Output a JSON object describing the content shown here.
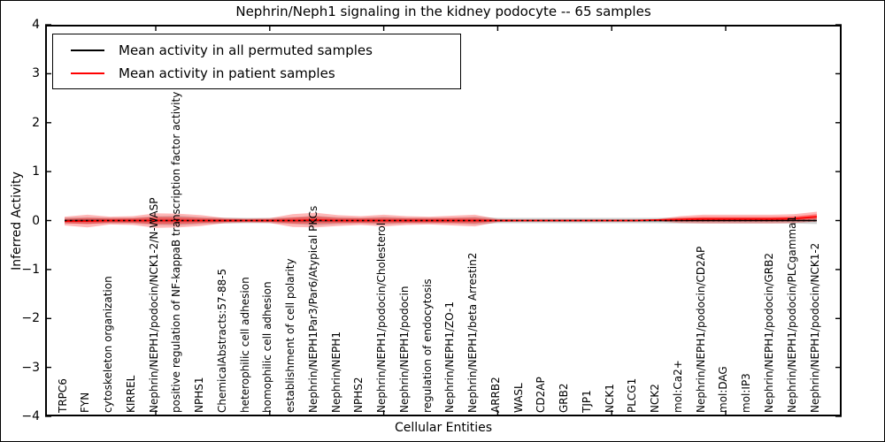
{
  "chart_data": {
    "type": "line",
    "title": "Nephrin/Neph1 signaling in the kidney podocyte -- 65 samples",
    "xlabel": "Cellular Entities",
    "ylabel": "Inferred Activity",
    "ylim": [
      -4,
      4
    ],
    "grid": false,
    "legend_position": "upper-left",
    "y_ticks": [
      4,
      3,
      2,
      1,
      0,
      -1,
      -2,
      -3,
      -4
    ],
    "y_tick_labels": [
      "4",
      "3",
      "2",
      "1",
      "0",
      "−1",
      "−2",
      "−3",
      "−4"
    ],
    "x_major_tick_indices": [
      4,
      9,
      14,
      19,
      24,
      29
    ],
    "categories": [
      "TRPC6",
      "FYN",
      "cytoskeleton organization",
      "KIRREL",
      "Nephrin/NEPH1/podocin/NCK1-2/N-WASP",
      "positive regulation of NF-kappaB transcription factor activity",
      "NPHS1",
      "ChemicalAbstracts:57-88-5",
      "heterophilic cell adhesion",
      "homophilic cell adhesion",
      "establishment of cell polarity",
      "Nephrin/NEPH1Par3/Par6/Atypical PKCs",
      "Nephrin/NEPH1",
      "NPHS2",
      "Nephrin/NEPH1/podocin/Cholesterol",
      "Nephrin/NEPH1/podocin",
      "regulation of endocytosis",
      "Nephrin/NEPH1/ZO-1",
      "Nephrin/NEPH1/beta Arrestin2",
      "ARRB2",
      "WASL",
      "CD2AP",
      "GRB2",
      "TJP1",
      "NCK1",
      "PLCG1",
      "NCK2",
      "mol:Ca2+",
      "Nephrin/NEPH1/podocin/CD2AP",
      "mol:DAG",
      "mol:IP3",
      "Nephrin/NEPH1/podocin/GRB2",
      "Nephrin/NEPH1/podocin/PLCgamma1",
      "Nephrin/NEPH1/podocin/NCK1-2"
    ],
    "series": [
      {
        "name": "Mean activity in all permuted samples",
        "color": "#000000",
        "values": [
          0,
          0,
          0,
          0,
          0,
          0,
          0,
          0,
          0,
          0,
          0,
          0,
          0,
          0,
          0,
          0,
          0,
          0,
          0,
          0,
          0,
          0,
          0,
          0,
          0,
          0,
          0,
          0,
          0,
          0,
          0,
          0,
          0,
          0
        ]
      },
      {
        "name": "Mean activity in patient samples",
        "color": "#ff0000",
        "values": [
          -0.01,
          -0.01,
          0,
          0,
          0,
          0,
          0,
          0,
          0,
          0,
          0,
          0.01,
          0,
          0,
          0,
          0,
          0,
          0,
          0,
          0,
          0,
          0,
          0,
          0,
          0,
          0,
          0.01,
          0.02,
          0.03,
          0.03,
          0.03,
          0.03,
          0.04,
          0.08
        ]
      }
    ],
    "bands": [
      {
        "name": "permuted-std-band",
        "center": "permuted",
        "color": "rgba(170,170,170,0.55)",
        "half_widths": [
          0.06,
          0.07,
          0.06,
          0.06,
          0.09,
          0.1,
          0.07,
          0.06,
          0.055,
          0.055,
          0.07,
          0.1,
          0.07,
          0.06,
          0.08,
          0.06,
          0.06,
          0.06,
          0.08,
          0.055,
          0.055,
          0.055,
          0.055,
          0.055,
          0.055,
          0.055,
          0.055,
          0.06,
          0.06,
          0.06,
          0.06,
          0.06,
          0.06,
          0.07
        ]
      },
      {
        "name": "patient-std-outer-band",
        "center": "patient",
        "color": "rgba(255,0,0,0.28)",
        "half_widths": [
          0.09,
          0.13,
          0.08,
          0.09,
          0.15,
          0.14,
          0.11,
          0.055,
          0.04,
          0.05,
          0.13,
          0.15,
          0.11,
          0.09,
          0.12,
          0.09,
          0.08,
          0.1,
          0.12,
          0.03,
          0.02,
          0.02,
          0.02,
          0.02,
          0.02,
          0.02,
          0.02,
          0.07,
          0.09,
          0.09,
          0.09,
          0.09,
          0.09,
          0.1
        ]
      },
      {
        "name": "patient-std-inner-band",
        "center": "patient",
        "color": "rgba(255,0,0,0.38)",
        "half_widths": [
          0.045,
          0.06,
          0.04,
          0.045,
          0.07,
          0.065,
          0.05,
          0.03,
          0.02,
          0.025,
          0.06,
          0.07,
          0.05,
          0.045,
          0.055,
          0.045,
          0.04,
          0.05,
          0.055,
          0.015,
          0.01,
          0.01,
          0.01,
          0.01,
          0.01,
          0.01,
          0.01,
          0.035,
          0.045,
          0.045,
          0.045,
          0.045,
          0.045,
          0.05
        ]
      }
    ]
  }
}
